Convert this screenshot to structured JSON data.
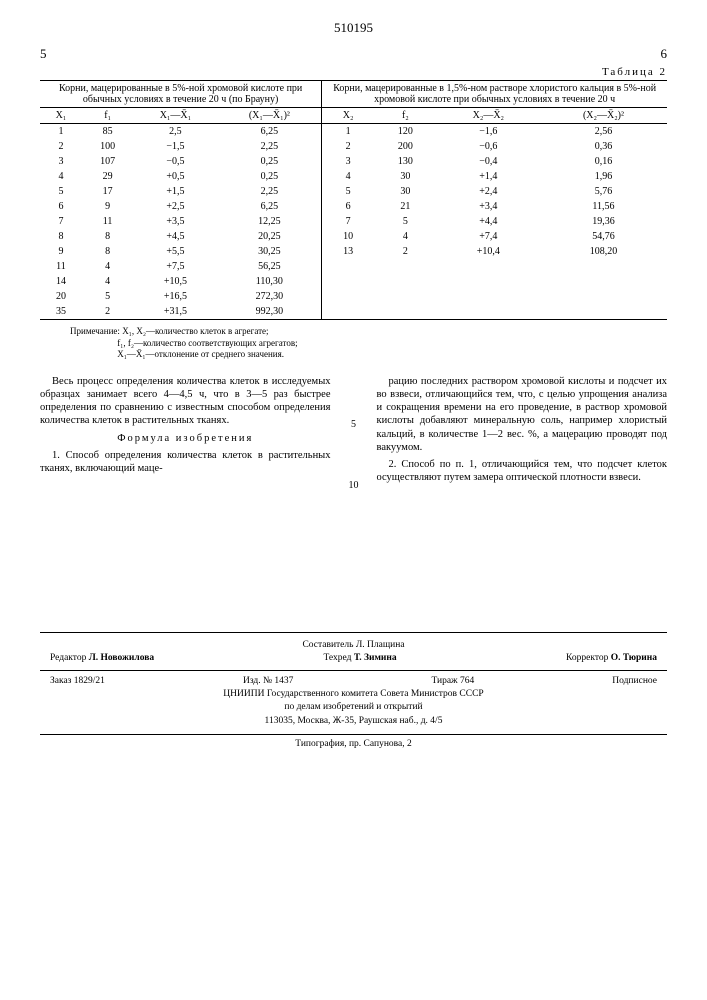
{
  "patent_number": "510195",
  "page_left": "5",
  "page_right": "6",
  "table_label": "Таблица 2",
  "table": {
    "header_left": "Корни, мацерированные в 5%-ной хромовой кислоте при обычных условиях в течение 20 ч (по Брауну)",
    "header_right": "Корни, мацерированные в 1,5%-ном растворе хлористого кальция в 5%-ной хромовой кислоте при обычных условиях в течение 20 ч",
    "sub_left": [
      "X₁",
      "f₁",
      "X₁—X̄₁",
      "(X₁—X̄₁)²"
    ],
    "sub_right": [
      "X₂",
      "f₂",
      "X₂—X̄₂",
      "(X₂—X̄₂)²"
    ],
    "rows": [
      [
        "1",
        "85",
        "2,5",
        "6,25",
        "1",
        "120",
        "−1,6",
        "2,56"
      ],
      [
        "2",
        "100",
        "−1,5",
        "2,25",
        "2",
        "200",
        "−0,6",
        "0,36"
      ],
      [
        "3",
        "107",
        "−0,5",
        "0,25",
        "3",
        "130",
        "−0,4",
        "0,16"
      ],
      [
        "4",
        "29",
        "+0,5",
        "0,25",
        "4",
        "30",
        "+1,4",
        "1,96"
      ],
      [
        "5",
        "17",
        "+1,5",
        "2,25",
        "5",
        "30",
        "+2,4",
        "5,76"
      ],
      [
        "6",
        "9",
        "+2,5",
        "6,25",
        "6",
        "21",
        "+3,4",
        "11,56"
      ],
      [
        "7",
        "11",
        "+3,5",
        "12,25",
        "7",
        "5",
        "+4,4",
        "19,36"
      ],
      [
        "8",
        "8",
        "+4,5",
        "20,25",
        "10",
        "4",
        "+7,4",
        "54,76"
      ],
      [
        "9",
        "8",
        "+5,5",
        "30,25",
        "13",
        "2",
        "+10,4",
        "108,20"
      ],
      [
        "11",
        "4",
        "+7,5",
        "56,25",
        "",
        "",
        "",
        ""
      ],
      [
        "14",
        "4",
        "+10,5",
        "110,30",
        "",
        "",
        "",
        ""
      ],
      [
        "20",
        "5",
        "+16,5",
        "272,30",
        "",
        "",
        "",
        ""
      ],
      [
        "35",
        "2",
        "+31,5",
        "992,30",
        "",
        "",
        "",
        ""
      ]
    ]
  },
  "note_label": "Примечание:",
  "note_l1": "X₁, X₂—количество клеток в агрегате;",
  "note_l2": "f₁, f₂—количество соответствующих агрегатов;",
  "note_l3": "X₁—X̄₁—отклонение от среднего значения.",
  "para1": "Весь процесс определения количества клеток в исследуемых образцах занимает всего 4—4,5 ч, что в 3—5 раз быстрее определения по сравнению с известным способом определения количества клеток в растительных тканях.",
  "formula_title": "Формула изобретения",
  "claim1a": "1. Способ определения количества клеток в растительных тканях, включающий маце-",
  "claim1b": "рацию последних раствором хромовой кислоты и подсчет их во взвеси, отличающийся тем, что, с целью упрощения анализа и сокращения времени на его проведение, в раствор хромовой кислоты добавляют минеральную соль, например хлористый кальций, в количестве 1—2 вес. %, а мацерацию проводят под вакуумом.",
  "claim2": "2. Способ по п. 1, отличающийся тем, что подсчет клеток осуществляют путем замера оптической плотности взвеси.",
  "gutter5": "5",
  "gutter10": "10",
  "footer": {
    "compiler": "Составитель Л. Плащина",
    "editor_lbl": "Редактор",
    "editor": "Л. Новожилова",
    "tech_lbl": "Техред",
    "tech": "Т. Зимина",
    "corr_lbl": "Корректор",
    "corr": "О. Тюрина",
    "order": "Заказ 1829/21",
    "izd": "Изд. № 1437",
    "tirazh": "Тираж 764",
    "sub": "Подписное",
    "org1": "ЦНИИПИ Государственного комитета Совета Министров СССР",
    "org2": "по делам изобретений и открытий",
    "addr": "113035, Москва, Ж-35, Раушская наб., д. 4/5",
    "typo": "Типография, пр. Сапунова, 2"
  }
}
